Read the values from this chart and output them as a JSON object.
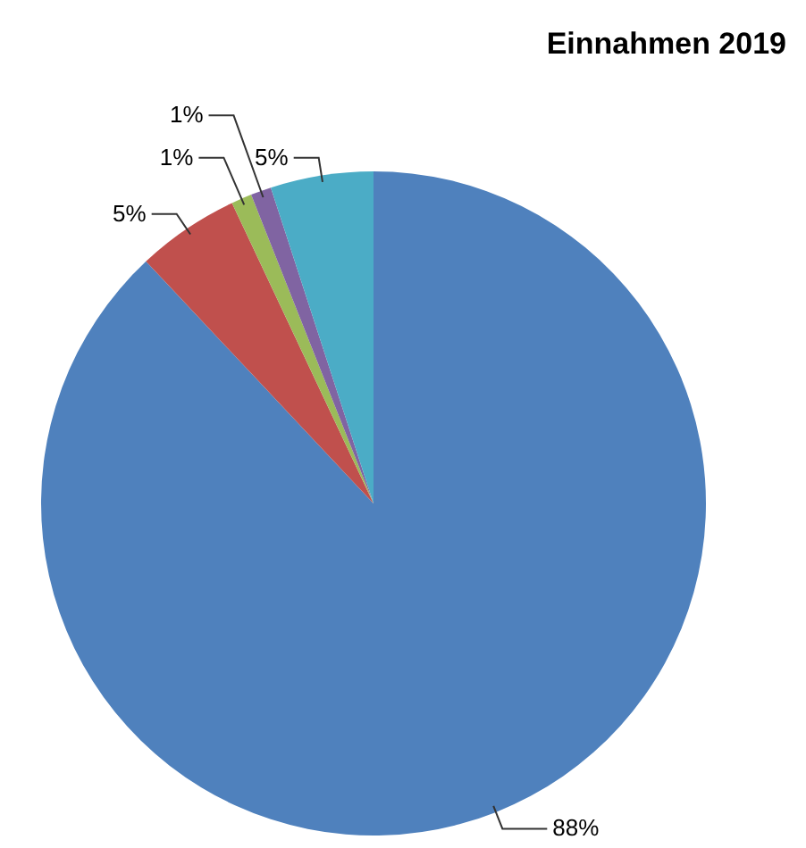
{
  "chart_data": {
    "type": "pie",
    "title": "Einnahmen 2019",
    "categories": [
      null,
      null,
      null,
      null,
      null
    ],
    "values": [
      88,
      5,
      1,
      1,
      5
    ],
    "colors": [
      "#4f81bd",
      "#c0504d",
      "#9bbb59",
      "#8064a2",
      "#4bacc6"
    ],
    "value_labels": [
      "88%",
      "5%",
      "1%",
      "1%",
      "5%"
    ]
  }
}
